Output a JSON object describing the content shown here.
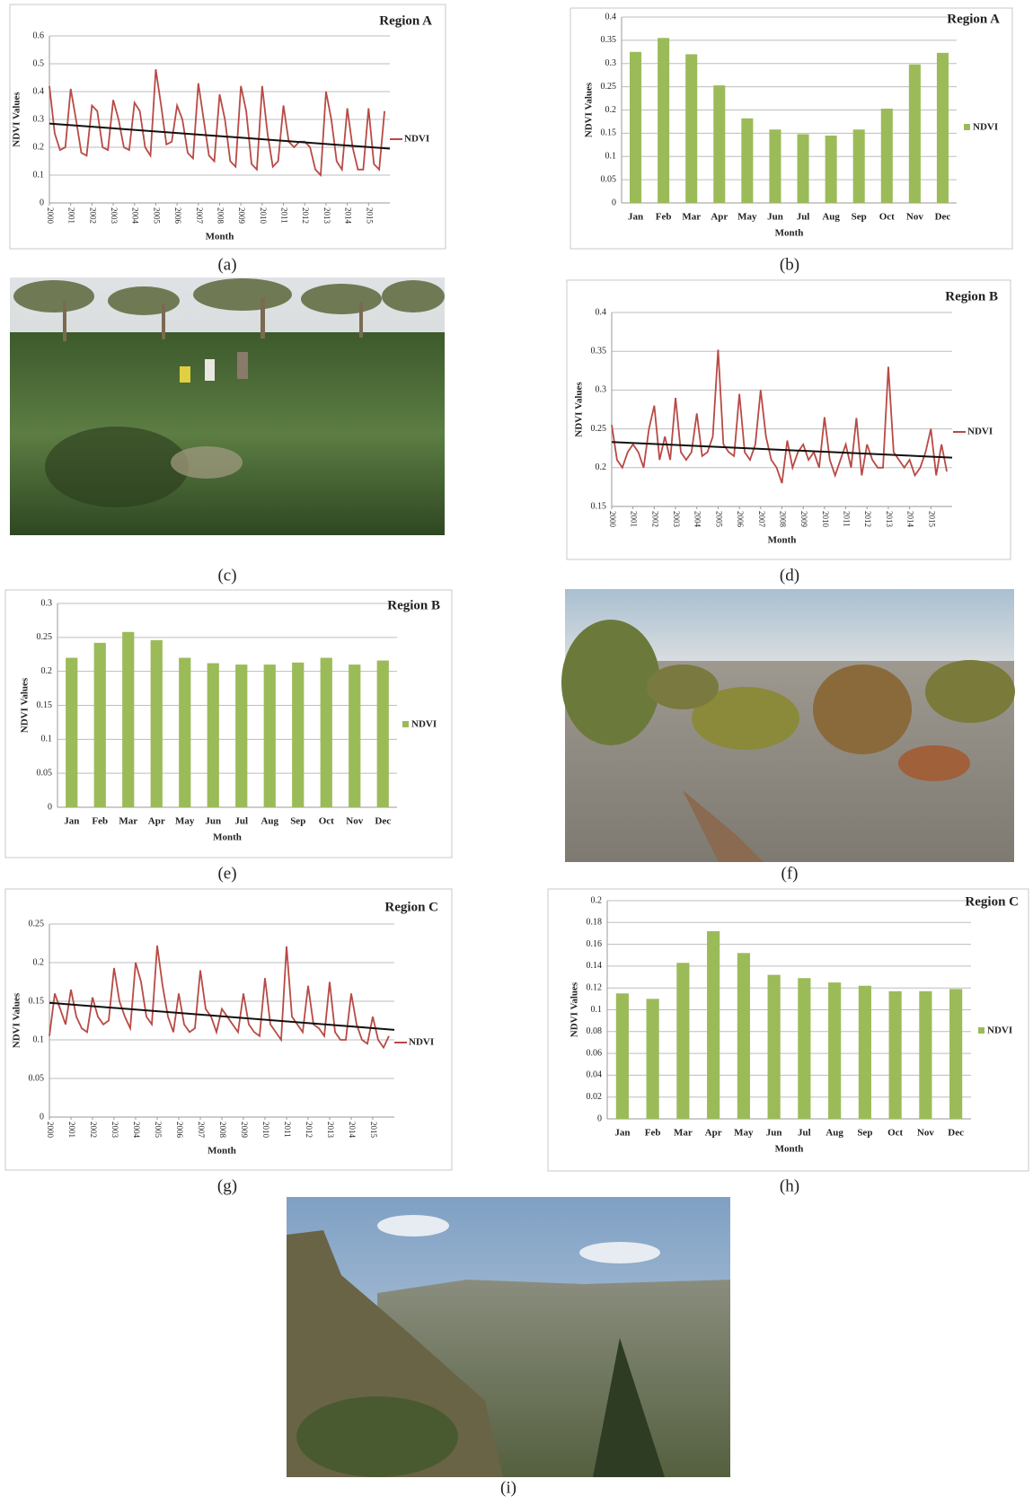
{
  "chart_data": [
    {
      "type": "line",
      "title": "Region A",
      "x_label": "Month",
      "y_label": "NDVI Values",
      "grid": true,
      "legend": "right",
      "xlim": [
        2000,
        2016
      ],
      "xticks": [
        2000,
        2001,
        2002,
        2003,
        2004,
        2005,
        2006,
        2007,
        2008,
        2009,
        2010,
        2011,
        2012,
        2013,
        2014,
        2015
      ],
      "ylim": [
        0,
        0.6
      ],
      "yticks": [
        0,
        0.1,
        0.2,
        0.3,
        0.4,
        0.5,
        0.6
      ],
      "x": [
        2000,
        2000.25,
        2000.5,
        2000.75,
        2001,
        2001.25,
        2001.5,
        2001.75,
        2002,
        2002.25,
        2002.5,
        2002.75,
        2003,
        2003.25,
        2003.5,
        2003.75,
        2004,
        2004.25,
        2004.5,
        2004.75,
        2005,
        2005.25,
        2005.5,
        2005.75,
        2006,
        2006.25,
        2006.5,
        2006.75,
        2007,
        2007.25,
        2007.5,
        2007.75,
        2008,
        2008.25,
        2008.5,
        2008.75,
        2009,
        2009.25,
        2009.5,
        2009.75,
        2010,
        2010.25,
        2010.5,
        2010.75,
        2011,
        2011.25,
        2011.5,
        2011.75,
        2012,
        2012.25,
        2012.5,
        2012.75,
        2013,
        2013.25,
        2013.5,
        2013.75,
        2014,
        2014.25,
        2014.5,
        2014.75,
        2015,
        2015.25,
        2015.5,
        2015.75
      ],
      "series": [
        {
          "name": "NDVI",
          "color": "#b84a45",
          "values": [
            0.42,
            0.25,
            0.19,
            0.2,
            0.41,
            0.3,
            0.18,
            0.17,
            0.35,
            0.33,
            0.2,
            0.19,
            0.37,
            0.3,
            0.2,
            0.19,
            0.36,
            0.33,
            0.2,
            0.17,
            0.48,
            0.35,
            0.21,
            0.22,
            0.35,
            0.3,
            0.18,
            0.16,
            0.43,
            0.3,
            0.17,
            0.15,
            0.39,
            0.3,
            0.15,
            0.13,
            0.42,
            0.33,
            0.14,
            0.12,
            0.42,
            0.25,
            0.13,
            0.15,
            0.35,
            0.22,
            0.2,
            0.22,
            0.22,
            0.2,
            0.12,
            0.1,
            0.4,
            0.3,
            0.15,
            0.12,
            0.34,
            0.2,
            0.12,
            0.12,
            0.34,
            0.14,
            0.12,
            0.33
          ]
        }
      ],
      "trend": {
        "color": "#111111",
        "x": [
          2000,
          2016
        ],
        "values": [
          0.285,
          0.195
        ]
      }
    },
    {
      "type": "bar",
      "title": "Region A",
      "x_label": "Month",
      "y_label": "NDVI Values",
      "grid": true,
      "legend": "right",
      "categories": [
        "Jan",
        "Feb",
        "Mar",
        "Apr",
        "May",
        "Jun",
        "Jul",
        "Aug",
        "Sep",
        "Oct",
        "Nov",
        "Dec"
      ],
      "ylim": [
        0,
        0.4
      ],
      "yticks": [
        0,
        0.05,
        0.1,
        0.15,
        0.2,
        0.25,
        0.3,
        0.35,
        0.4
      ],
      "series": [
        {
          "name": "NDVI",
          "color": "#9bbb59",
          "values": [
            0.325,
            0.355,
            0.32,
            0.253,
            0.182,
            0.158,
            0.148,
            0.145,
            0.158,
            0.203,
            0.298,
            0.323
          ]
        }
      ]
    },
    {
      "type": "line",
      "title": "Region B",
      "x_label": "Month",
      "y_label": "NDVI Values",
      "grid": true,
      "legend": "right",
      "xlim": [
        2000,
        2016
      ],
      "xticks": [
        2000,
        2001,
        2002,
        2003,
        2004,
        2005,
        2006,
        2007,
        2008,
        2009,
        2010,
        2011,
        2012,
        2013,
        2014,
        2015
      ],
      "ylim": [
        0.15,
        0.4
      ],
      "yticks": [
        0.15,
        0.2,
        0.25,
        0.3,
        0.35,
        0.4
      ],
      "x": [
        2000,
        2000.25,
        2000.5,
        2000.75,
        2001,
        2001.25,
        2001.5,
        2001.75,
        2002,
        2002.25,
        2002.5,
        2002.75,
        2003,
        2003.25,
        2003.5,
        2003.75,
        2004,
        2004.25,
        2004.5,
        2004.75,
        2005,
        2005.25,
        2005.5,
        2005.75,
        2006,
        2006.25,
        2006.5,
        2006.75,
        2007,
        2007.25,
        2007.5,
        2007.75,
        2008,
        2008.25,
        2008.5,
        2008.75,
        2009,
        2009.25,
        2009.5,
        2009.75,
        2010,
        2010.25,
        2010.5,
        2010.75,
        2011,
        2011.25,
        2011.5,
        2011.75,
        2012,
        2012.25,
        2012.5,
        2012.75,
        2013,
        2013.25,
        2013.5,
        2013.75,
        2014,
        2014.25,
        2014.5,
        2014.75,
        2015,
        2015.25,
        2015.5,
        2015.75
      ],
      "series": [
        {
          "name": "NDVI",
          "color": "#b84a45",
          "values": [
            0.255,
            0.21,
            0.2,
            0.22,
            0.23,
            0.22,
            0.2,
            0.25,
            0.28,
            0.21,
            0.24,
            0.21,
            0.29,
            0.22,
            0.21,
            0.22,
            0.27,
            0.215,
            0.22,
            0.24,
            0.352,
            0.23,
            0.22,
            0.215,
            0.295,
            0.22,
            0.21,
            0.23,
            0.3,
            0.24,
            0.21,
            0.2,
            0.18,
            0.235,
            0.2,
            0.22,
            0.23,
            0.21,
            0.22,
            0.2,
            0.265,
            0.21,
            0.19,
            0.21,
            0.23,
            0.2,
            0.264,
            0.19,
            0.23,
            0.21,
            0.2,
            0.2,
            0.33,
            0.22,
            0.21,
            0.2,
            0.21,
            0.19,
            0.2,
            0.22,
            0.25,
            0.19,
            0.23,
            0.195
          ]
        }
      ],
      "trend": {
        "color": "#111111",
        "x": [
          2000,
          2016
        ],
        "values": [
          0.233,
          0.213
        ]
      }
    },
    {
      "type": "bar",
      "title": "Region B",
      "x_label": "Month",
      "y_label": "NDVI Values",
      "grid": true,
      "legend": "right",
      "categories": [
        "Jan",
        "Feb",
        "Mar",
        "Apr",
        "May",
        "Jun",
        "Jul",
        "Aug",
        "Sep",
        "Oct",
        "Nov",
        "Dec"
      ],
      "ylim": [
        0,
        0.3
      ],
      "yticks": [
        0,
        0.05,
        0.1,
        0.15,
        0.2,
        0.25,
        0.3
      ],
      "series": [
        {
          "name": "NDVI",
          "color": "#9bbb59",
          "values": [
            0.22,
            0.242,
            0.258,
            0.246,
            0.22,
            0.212,
            0.21,
            0.21,
            0.213,
            0.22,
            0.21,
            0.216
          ]
        }
      ]
    },
    {
      "type": "line",
      "title": "Region C",
      "x_label": "Month",
      "y_label": "NDVI Values",
      "grid": true,
      "legend": "right",
      "xlim": [
        2000,
        2016
      ],
      "xticks": [
        2000,
        2001,
        2002,
        2003,
        2004,
        2005,
        2006,
        2007,
        2008,
        2009,
        2010,
        2011,
        2012,
        2013,
        2014,
        2015
      ],
      "ylim": [
        0,
        0.25
      ],
      "yticks": [
        0,
        0.05,
        0.1,
        0.15,
        0.2,
        0.25
      ],
      "x": [
        2000,
        2000.25,
        2000.5,
        2000.75,
        2001,
        2001.25,
        2001.5,
        2001.75,
        2002,
        2002.25,
        2002.5,
        2002.75,
        2003,
        2003.25,
        2003.5,
        2003.75,
        2004,
        2004.25,
        2004.5,
        2004.75,
        2005,
        2005.25,
        2005.5,
        2005.75,
        2006,
        2006.25,
        2006.5,
        2006.75,
        2007,
        2007.25,
        2007.5,
        2007.75,
        2008,
        2008.25,
        2008.5,
        2008.75,
        2009,
        2009.25,
        2009.5,
        2009.75,
        2010,
        2010.25,
        2010.5,
        2010.75,
        2011,
        2011.25,
        2011.5,
        2011.75,
        2012,
        2012.25,
        2012.5,
        2012.75,
        2013,
        2013.25,
        2013.5,
        2013.75,
        2014,
        2014.25,
        2014.5,
        2014.75,
        2015,
        2015.25,
        2015.5,
        2015.75
      ],
      "series": [
        {
          "name": "NDVI",
          "color": "#b84a45",
          "values": [
            0.105,
            0.16,
            0.14,
            0.12,
            0.165,
            0.13,
            0.115,
            0.11,
            0.155,
            0.13,
            0.12,
            0.125,
            0.193,
            0.15,
            0.13,
            0.115,
            0.2,
            0.175,
            0.13,
            0.12,
            0.222,
            0.17,
            0.13,
            0.11,
            0.16,
            0.12,
            0.11,
            0.115,
            0.19,
            0.14,
            0.13,
            0.11,
            0.14,
            0.13,
            0.12,
            0.11,
            0.16,
            0.12,
            0.11,
            0.105,
            0.18,
            0.12,
            0.11,
            0.1,
            0.221,
            0.13,
            0.12,
            0.11,
            0.17,
            0.12,
            0.115,
            0.105,
            0.175,
            0.11,
            0.1,
            0.1,
            0.16,
            0.12,
            0.1,
            0.095,
            0.13,
            0.1,
            0.09,
            0.105
          ]
        }
      ],
      "trend": {
        "color": "#111111",
        "x": [
          2000,
          2016
        ],
        "values": [
          0.148,
          0.113
        ]
      }
    },
    {
      "type": "bar",
      "title": "Region C",
      "x_label": "Month",
      "y_label": "NDVI Values",
      "grid": true,
      "legend": "right",
      "categories": [
        "Jan",
        "Feb",
        "Mar",
        "Apr",
        "May",
        "Jun",
        "Jul",
        "Aug",
        "Sep",
        "Oct",
        "Nov",
        "Dec"
      ],
      "ylim": [
        0,
        0.2
      ],
      "yticks": [
        0,
        0.02,
        0.04,
        0.06,
        0.08,
        0.1,
        0.12,
        0.14,
        0.16,
        0.18,
        0.2
      ],
      "series": [
        {
          "name": "NDVI",
          "color": "#9bbb59",
          "values": [
            0.115,
            0.11,
            0.143,
            0.172,
            0.152,
            0.132,
            0.129,
            0.125,
            0.122,
            0.117,
            0.117,
            0.119
          ]
        }
      ]
    }
  ],
  "captions": [
    "(a)",
    "(b)",
    "(c)",
    "(d)",
    "(e)",
    "(f)",
    "(g)",
    "(h)",
    "(i)"
  ]
}
